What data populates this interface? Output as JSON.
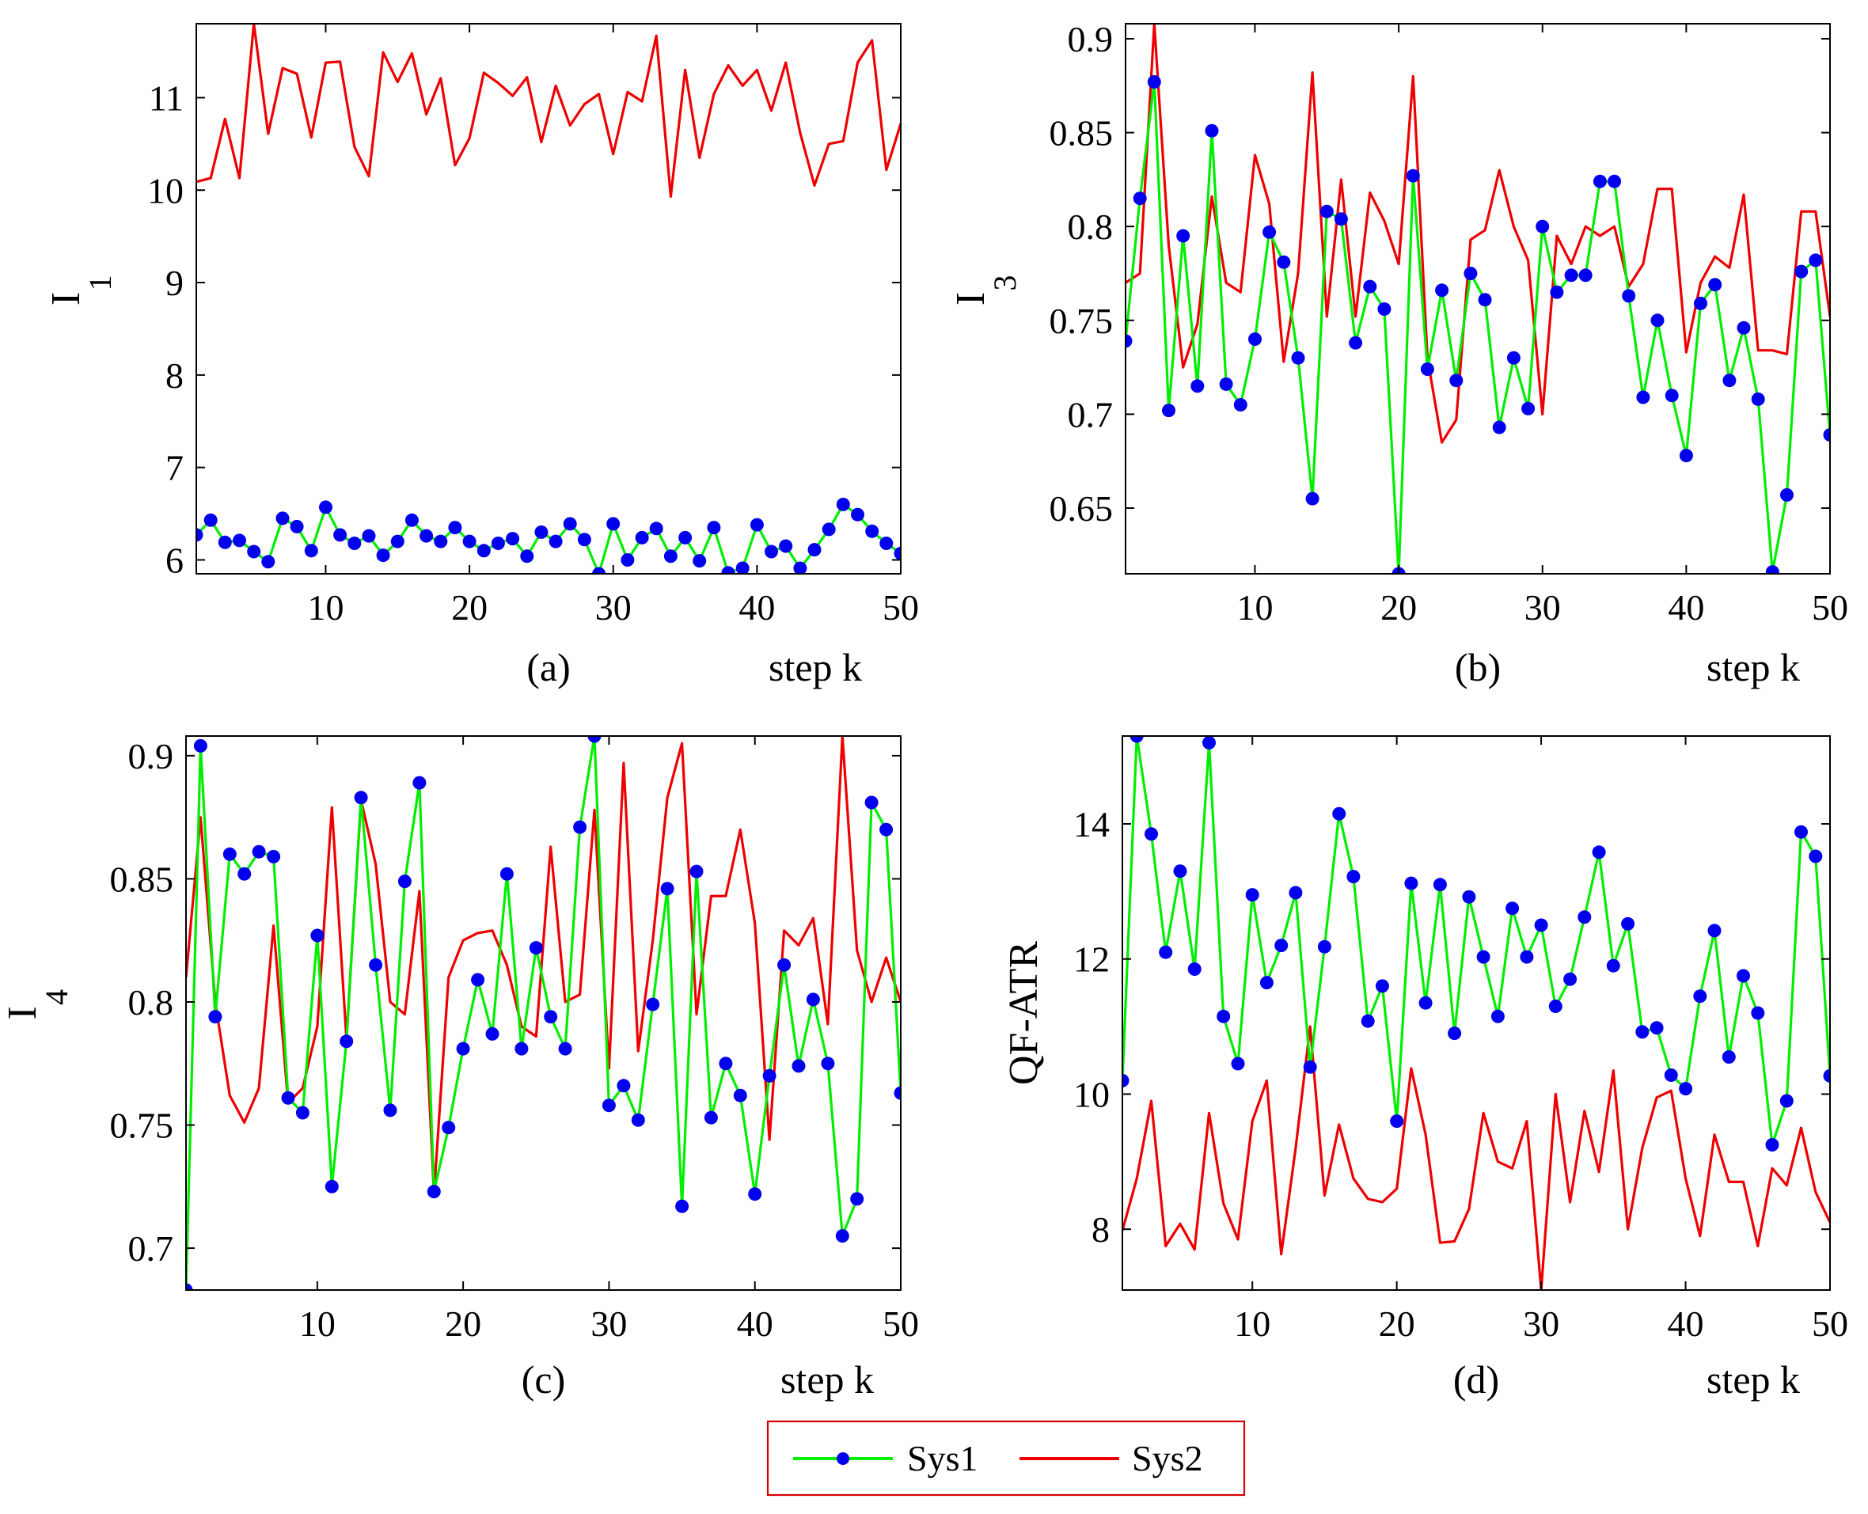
{
  "legend": {
    "placement": "bottom-center",
    "entries": [
      {
        "label": "Sys1",
        "color": "#00ee00",
        "marker_color": "#0000ee",
        "marker": "circle"
      },
      {
        "label": "Sys2",
        "color": "#ee0000",
        "marker": "none"
      }
    ]
  },
  "chart_data": [
    {
      "type": "line",
      "panel_label": "(a)",
      "xlabel": "step k",
      "ylabel": "I",
      "ylabel_subscript": "1",
      "xlim": [
        1,
        50
      ],
      "ylim": [
        5.85,
        11.8
      ],
      "xticks": [
        "10",
        "20",
        "30",
        "40",
        "50"
      ],
      "yticks": [
        "6",
        "7",
        "8",
        "9",
        "10",
        "11"
      ],
      "grid": false,
      "x": [
        1,
        2,
        3,
        4,
        5,
        6,
        7,
        8,
        9,
        10,
        11,
        12,
        13,
        14,
        15,
        16,
        17,
        18,
        19,
        20,
        21,
        22,
        23,
        24,
        25,
        26,
        27,
        28,
        29,
        30,
        31,
        32,
        33,
        34,
        35,
        36,
        37,
        38,
        39,
        40,
        41,
        42,
        43,
        44,
        45,
        46,
        47,
        48,
        49,
        50
      ],
      "series": [
        {
          "name": "Sys1",
          "values": [
            6.27,
            6.43,
            6.19,
            6.21,
            6.09,
            5.98,
            6.45,
            6.36,
            6.1,
            6.57,
            6.27,
            6.18,
            6.26,
            6.05,
            6.2,
            6.43,
            6.26,
            6.2,
            6.35,
            6.2,
            6.1,
            6.18,
            6.23,
            6.04,
            6.3,
            6.2,
            6.39,
            6.22,
            5.85,
            6.39,
            6.0,
            6.24,
            6.34,
            6.04,
            6.24,
            5.99,
            6.35,
            5.86,
            5.91,
            6.38,
            6.09,
            6.15,
            5.91,
            6.11,
            6.33,
            6.6,
            6.49,
            6.31,
            6.18,
            6.07
          ]
        },
        {
          "name": "Sys2",
          "values": [
            10.09,
            10.13,
            10.77,
            10.13,
            11.8,
            10.61,
            11.32,
            11.26,
            10.57,
            11.38,
            11.39,
            10.47,
            10.15,
            11.49,
            11.17,
            11.48,
            10.82,
            11.21,
            10.27,
            10.56,
            11.27,
            11.16,
            11.02,
            11.22,
            10.52,
            11.13,
            10.7,
            10.93,
            11.04,
            10.39,
            11.06,
            10.96,
            11.67,
            9.93,
            11.3,
            10.35,
            11.04,
            11.35,
            11.13,
            11.3,
            10.86,
            11.38,
            10.62,
            10.05,
            10.5,
            10.53,
            11.38,
            11.62,
            10.22,
            10.72
          ]
        }
      ]
    },
    {
      "type": "line",
      "panel_label": "(b)",
      "xlabel": "step k",
      "ylabel": "I",
      "ylabel_subscript": "3",
      "xlim": [
        1,
        50
      ],
      "ylim": [
        0.615,
        0.908
      ],
      "xticks": [
        "10",
        "20",
        "30",
        "40",
        "50"
      ],
      "yticks": [
        "0.65",
        "0.7",
        "0.75",
        "0.8",
        "0.85",
        "0.9"
      ],
      "grid": false,
      "x": [
        1,
        2,
        3,
        4,
        5,
        6,
        7,
        8,
        9,
        10,
        11,
        12,
        13,
        14,
        15,
        16,
        17,
        18,
        19,
        20,
        21,
        22,
        23,
        24,
        25,
        26,
        27,
        28,
        29,
        30,
        31,
        32,
        33,
        34,
        35,
        36,
        37,
        38,
        39,
        40,
        41,
        42,
        43,
        44,
        45,
        46,
        47,
        48,
        49,
        50
      ],
      "series": [
        {
          "name": "Sys1",
          "values": [
            0.739,
            0.815,
            0.877,
            0.702,
            0.795,
            0.715,
            0.851,
            0.716,
            0.705,
            0.74,
            0.797,
            0.781,
            0.73,
            0.655,
            0.808,
            0.804,
            0.738,
            0.768,
            0.756,
            0.615,
            0.827,
            0.724,
            0.766,
            0.718,
            0.775,
            0.761,
            0.693,
            0.73,
            0.703,
            0.8,
            0.765,
            0.774,
            0.774,
            0.824,
            0.824,
            0.763,
            0.709,
            0.75,
            0.71,
            0.678,
            0.759,
            0.769,
            0.718,
            0.746,
            0.708,
            0.616,
            0.657,
            0.776,
            0.782,
            0.689
          ]
        },
        {
          "name": "Sys2",
          "values": [
            0.77,
            0.775,
            0.908,
            0.79,
            0.725,
            0.748,
            0.816,
            0.77,
            0.765,
            0.838,
            0.812,
            0.728,
            0.775,
            0.882,
            0.752,
            0.825,
            0.752,
            0.818,
            0.803,
            0.78,
            0.88,
            0.73,
            0.685,
            0.697,
            0.793,
            0.798,
            0.83,
            0.8,
            0.782,
            0.7,
            0.795,
            0.78,
            0.8,
            0.795,
            0.8,
            0.768,
            0.78,
            0.82,
            0.82,
            0.733,
            0.77,
            0.784,
            0.778,
            0.817,
            0.734,
            0.734,
            0.732,
            0.808,
            0.808,
            0.752
          ]
        }
      ]
    },
    {
      "type": "line",
      "panel_label": "(c)",
      "xlabel": "step k",
      "ylabel": "I",
      "ylabel_subscript": "4",
      "xlim": [
        1,
        50
      ],
      "ylim": [
        0.683,
        0.908
      ],
      "xticks": [
        "10",
        "20",
        "30",
        "40",
        "50"
      ],
      "yticks": [
        "0.7",
        "0.75",
        "0.8",
        "0.85",
        "0.9"
      ],
      "grid": false,
      "x": [
        1,
        2,
        3,
        4,
        5,
        6,
        7,
        8,
        9,
        10,
        11,
        12,
        13,
        14,
        15,
        16,
        17,
        18,
        19,
        20,
        21,
        22,
        23,
        24,
        25,
        26,
        27,
        28,
        29,
        30,
        31,
        32,
        33,
        34,
        35,
        36,
        37,
        38,
        39,
        40,
        41,
        42,
        43,
        44,
        45,
        46,
        47,
        48,
        49,
        50
      ],
      "series": [
        {
          "name": "Sys1",
          "values": [
            0.683,
            0.904,
            0.794,
            0.86,
            0.852,
            0.861,
            0.859,
            0.761,
            0.755,
            0.827,
            0.725,
            0.784,
            0.883,
            0.815,
            0.756,
            0.849,
            0.889,
            0.723,
            0.749,
            0.781,
            0.809,
            0.787,
            0.852,
            0.781,
            0.822,
            0.794,
            0.781,
            0.871,
            0.908,
            0.758,
            0.766,
            0.752,
            0.799,
            0.846,
            0.717,
            0.853,
            0.753,
            0.775,
            0.762,
            0.722,
            0.77,
            0.815,
            0.774,
            0.801,
            0.775,
            0.705,
            0.72,
            0.881,
            0.87,
            0.763
          ]
        },
        {
          "name": "Sys2",
          "values": [
            0.81,
            0.875,
            0.8,
            0.762,
            0.751,
            0.765,
            0.831,
            0.759,
            0.765,
            0.79,
            0.879,
            0.785,
            0.882,
            0.856,
            0.8,
            0.795,
            0.845,
            0.722,
            0.81,
            0.825,
            0.828,
            0.829,
            0.815,
            0.79,
            0.786,
            0.863,
            0.8,
            0.803,
            0.878,
            0.773,
            0.897,
            0.78,
            0.825,
            0.883,
            0.905,
            0.795,
            0.843,
            0.843,
            0.87,
            0.832,
            0.744,
            0.829,
            0.823,
            0.834,
            0.791,
            0.908,
            0.821,
            0.8,
            0.818,
            0.8
          ]
        }
      ]
    },
    {
      "type": "line",
      "panel_label": "(d)",
      "xlabel": "step k",
      "ylabel": "QF-ATR",
      "xlim": [
        1,
        50
      ],
      "ylim": [
        7.1,
        15.3
      ],
      "xticks": [
        "10",
        "20",
        "30",
        "40",
        "50"
      ],
      "yticks": [
        "8",
        "10",
        "12",
        "14"
      ],
      "grid": false,
      "x": [
        1,
        2,
        3,
        4,
        5,
        6,
        7,
        8,
        9,
        10,
        11,
        12,
        13,
        14,
        15,
        16,
        17,
        18,
        19,
        20,
        21,
        22,
        23,
        24,
        25,
        26,
        27,
        28,
        29,
        30,
        31,
        32,
        33,
        34,
        35,
        36,
        37,
        38,
        39,
        40,
        41,
        42,
        43,
        44,
        45,
        46,
        47,
        48,
        49,
        50
      ],
      "series": [
        {
          "name": "Sys1",
          "values": [
            10.2,
            15.3,
            13.85,
            12.1,
            13.3,
            11.85,
            15.2,
            11.15,
            10.45,
            12.95,
            11.65,
            12.2,
            12.98,
            10.4,
            12.18,
            14.15,
            13.22,
            11.08,
            11.6,
            9.6,
            13.12,
            11.35,
            13.1,
            10.9,
            12.92,
            12.03,
            11.15,
            12.75,
            12.03,
            12.5,
            11.3,
            11.7,
            12.62,
            13.58,
            11.9,
            12.52,
            10.92,
            10.98,
            10.28,
            10.08,
            11.45,
            12.42,
            10.55,
            11.75,
            11.2,
            9.25,
            9.9,
            13.88,
            13.52,
            10.27
          ]
        },
        {
          "name": "Sys2",
          "values": [
            7.98,
            8.75,
            9.9,
            7.75,
            8.08,
            7.7,
            9.72,
            8.38,
            7.85,
            9.6,
            10.2,
            7.63,
            9.2,
            11.0,
            8.5,
            9.55,
            8.75,
            8.45,
            8.4,
            8.6,
            10.38,
            9.4,
            7.8,
            7.82,
            8.3,
            9.72,
            9.0,
            8.9,
            9.6,
            7.1,
            10.0,
            8.4,
            9.75,
            8.85,
            10.35,
            8.0,
            9.2,
            9.95,
            10.05,
            8.75,
            7.9,
            9.4,
            8.7,
            8.7,
            7.75,
            8.9,
            8.65,
            9.5,
            8.55,
            8.1
          ]
        }
      ]
    }
  ]
}
